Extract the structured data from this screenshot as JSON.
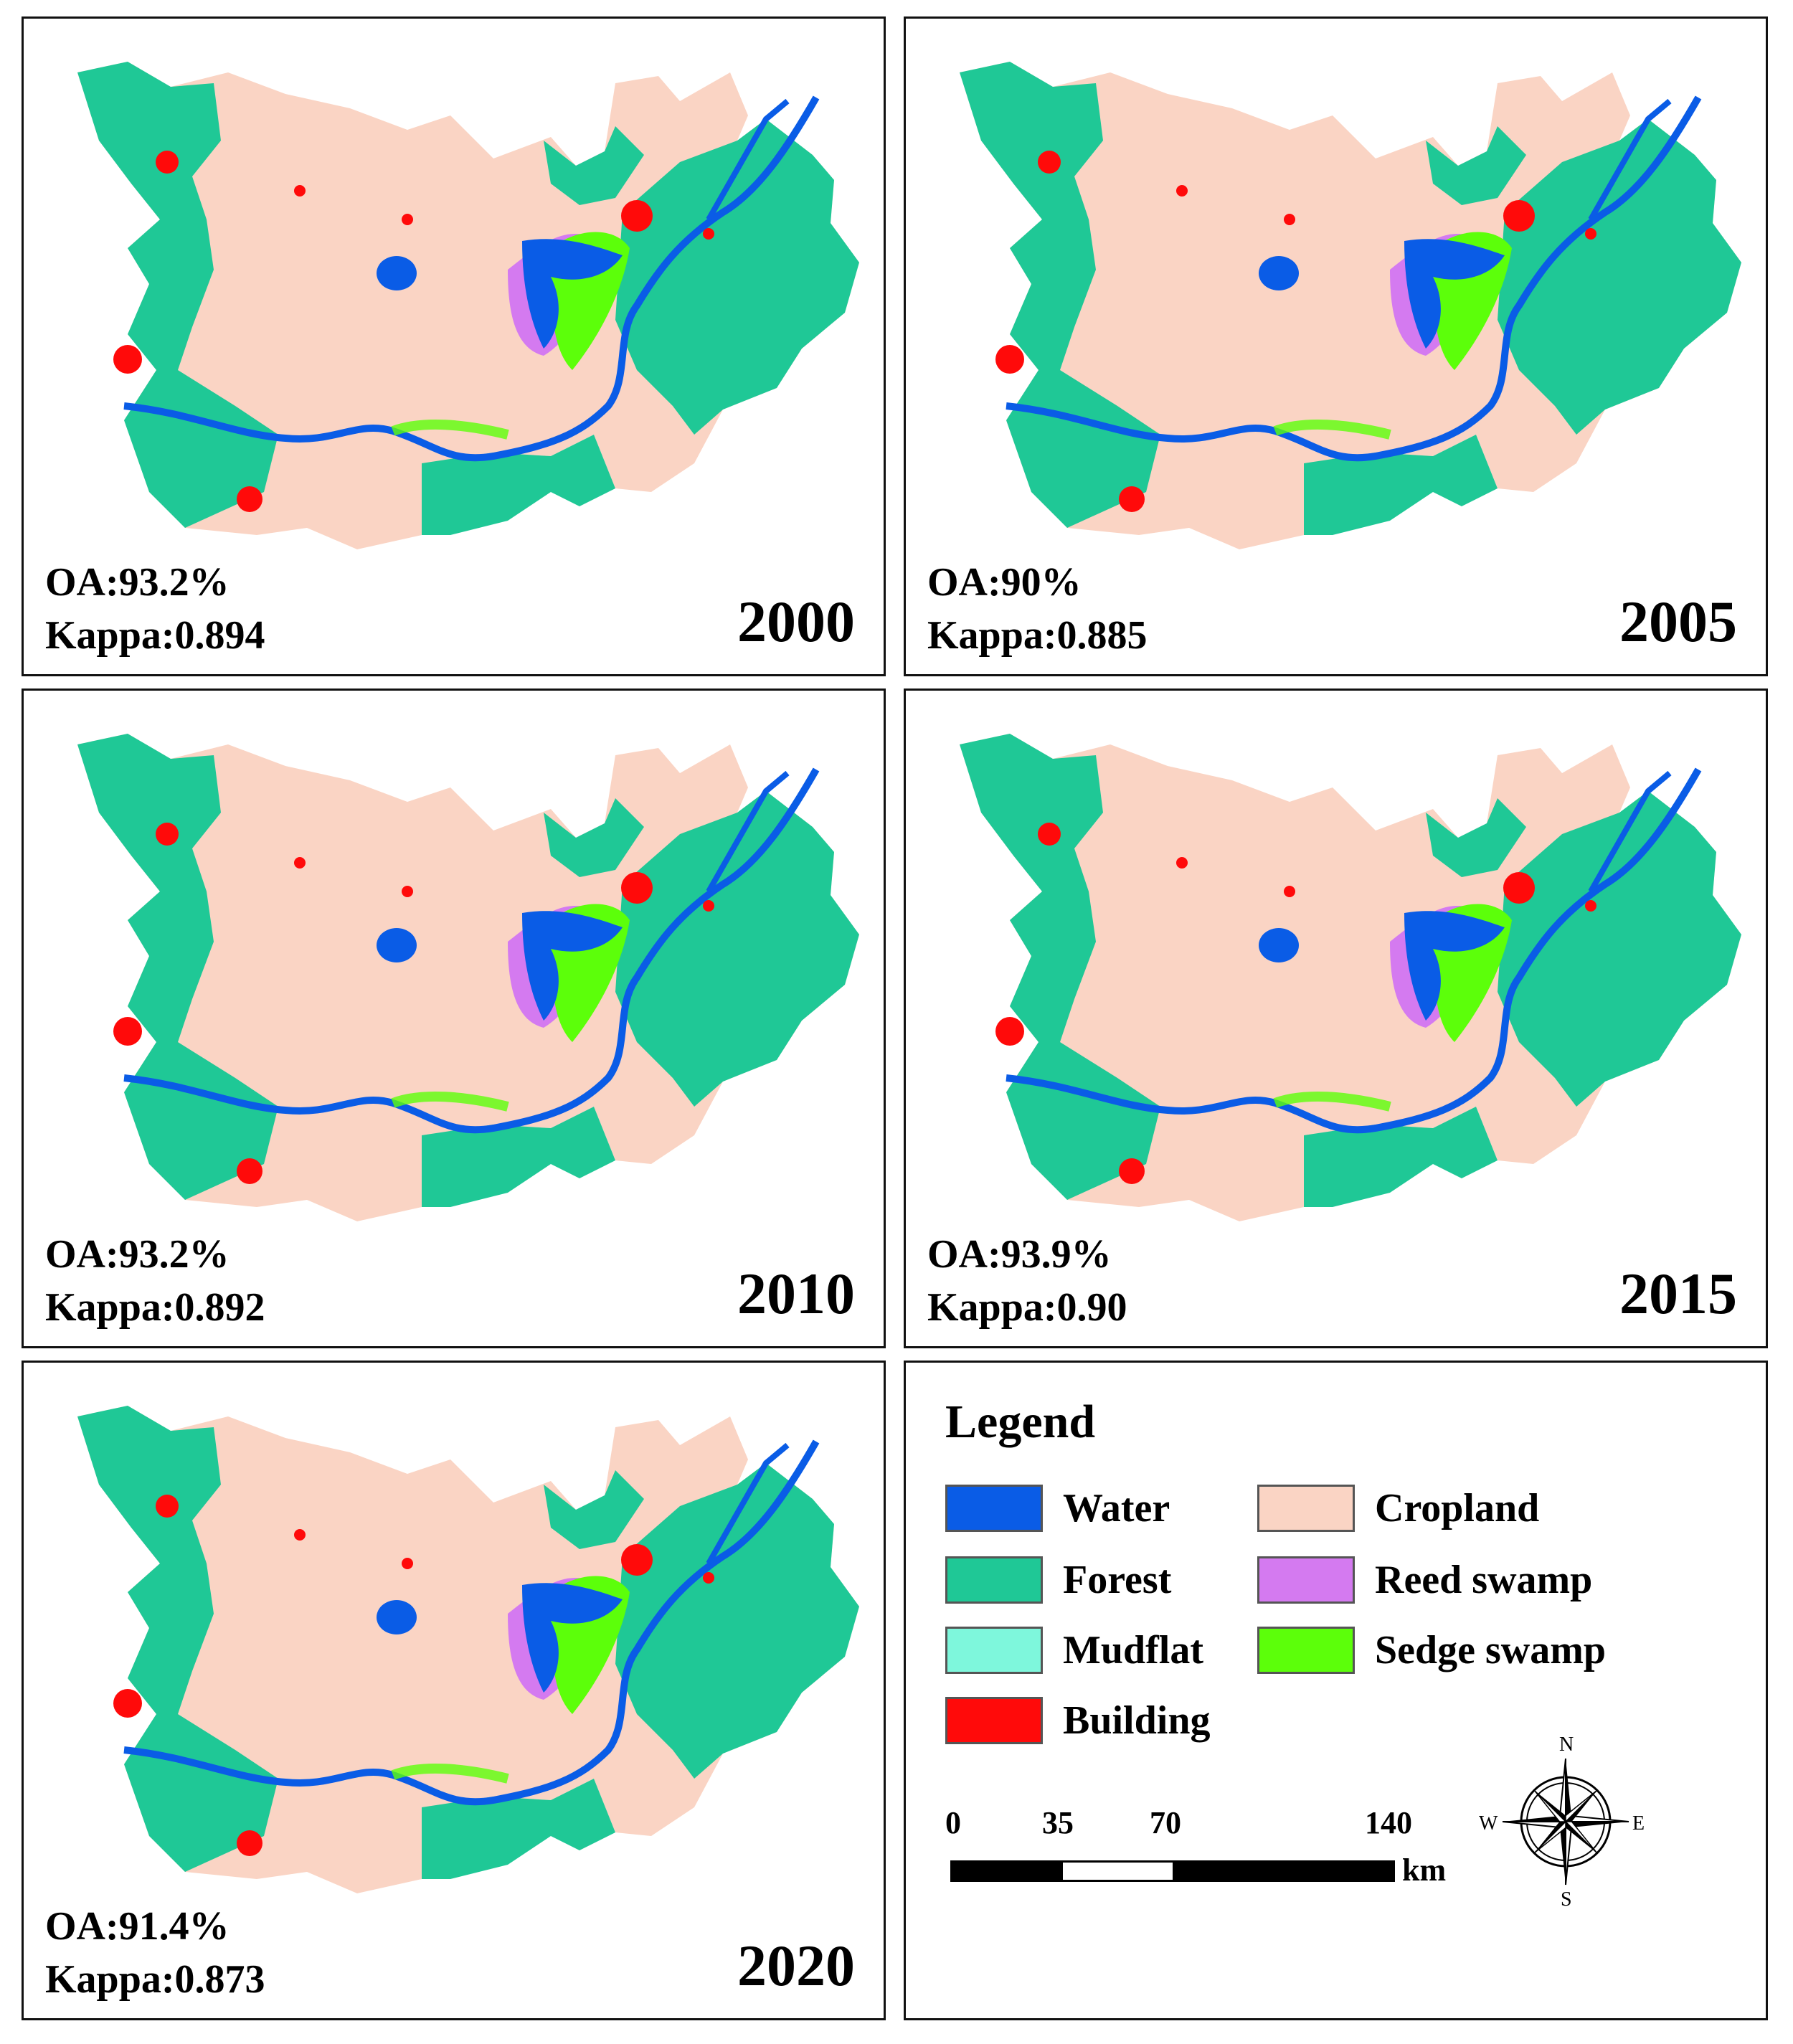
{
  "panels": [
    {
      "year": "2000",
      "oa": "OA:93.2%",
      "kappa": "Kappa:0.894"
    },
    {
      "year": "2005",
      "oa": "OA:90%",
      "kappa": "Kappa:0.885"
    },
    {
      "year": "2010",
      "oa": "OA:93.2%",
      "kappa": "Kappa:0.892"
    },
    {
      "year": "2015",
      "oa": "OA:93.9%",
      "kappa": "Kappa:0.90"
    },
    {
      "year": "2020",
      "oa": "OA:91.4%",
      "kappa": "Kappa:0.873"
    }
  ],
  "legend": {
    "title": "Legend",
    "items": [
      {
        "label": "Water",
        "color": "#0a5ce6"
      },
      {
        "label": "Cropland",
        "color": "#fad4c4"
      },
      {
        "label": "Forest",
        "color": "#1fc896"
      },
      {
        "label": "Reed swamp",
        "color": "#d47af0"
      },
      {
        "label": "Mudflat",
        "color": "#7ef7dc"
      },
      {
        "label": "Sedge swamp",
        "color": "#5cff0a"
      },
      {
        "label": "Building",
        "color": "#ff0a0a"
      }
    ]
  },
  "scale_bar": {
    "ticks": [
      "0",
      "35",
      "70",
      "140"
    ],
    "unit": "km"
  },
  "north_arrow": {
    "icon": "compass-rose-icon",
    "labels": {
      "n": "N",
      "s": "S",
      "e": "E",
      "w": "W"
    }
  }
}
